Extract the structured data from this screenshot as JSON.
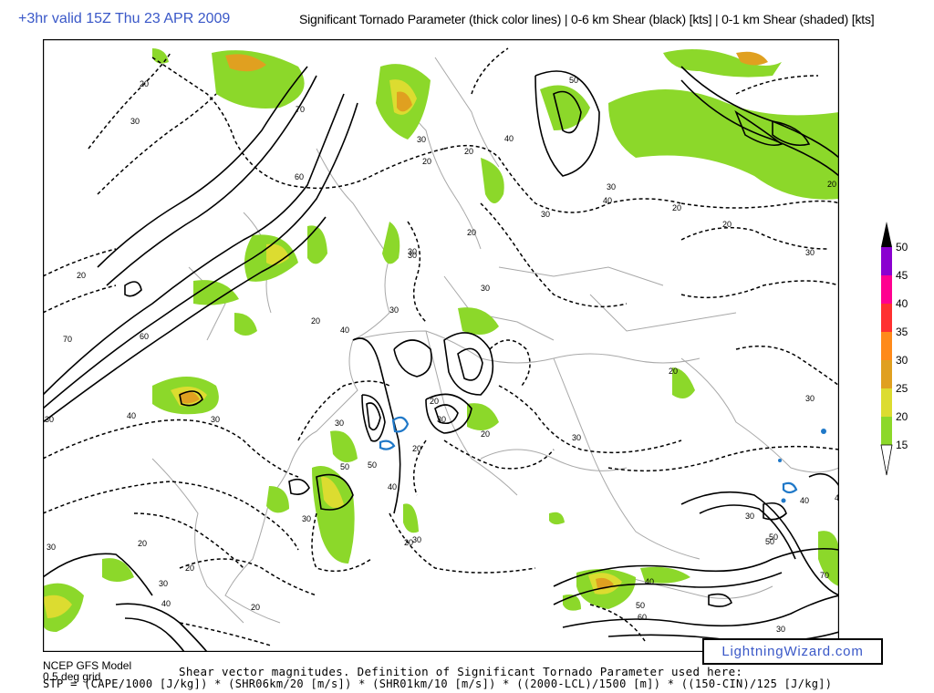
{
  "header": {
    "valid_label": "+3hr valid 15Z Thu 23 APR 2009",
    "product_title": "Significant Tornado Parameter (thick color lines) | 0-6 km Shear (black) [kts] | 0-1 km Shear (shaded) [kts]"
  },
  "colorbar": {
    "ticks": [
      "50",
      "45",
      "40",
      "35",
      "30",
      "25",
      "20",
      "15"
    ],
    "colors": [
      "#000000",
      "#8a00d0",
      "#ff0090",
      "#ff3030",
      "#ff8a1a",
      "#e0a020",
      "#dcdc30",
      "#8cd82a"
    ]
  },
  "contour_labels": [
    "20",
    "30",
    "70",
    "60",
    "20",
    "70",
    "60",
    "30",
    "40",
    "30",
    "50",
    "40",
    "30",
    "20",
    "20",
    "30",
    "40",
    "50",
    "30",
    "20",
    "20",
    "20",
    "30",
    "30",
    "20",
    "40",
    "50",
    "30",
    "20",
    "20",
    "20",
    "40",
    "30",
    "30",
    "20",
    "30",
    "30",
    "20",
    "40",
    "50",
    "60",
    "70",
    "30",
    "50",
    "40",
    "20",
    "30",
    "20",
    "20",
    "30",
    "30",
    "20",
    "40",
    "30",
    "50",
    "40",
    "30",
    "30",
    "30"
  ],
  "footer": {
    "model_name": "NCEP GFS Model",
    "model_grid": "0.5 deg grid",
    "note": "Shear vector magnitudes. Definition of Significant Tornado Parameter used here:",
    "formula": "STP = (CAPE/1000 [J/kg]) * (SHR06km/20 [m/s]) * (SHR01km/10 [m/s]) * ((2000-LCL)/1500 [m]) * ((150-CIN)/125 [J/kg])"
  },
  "watermark": "LightningWizard.com",
  "colors": {
    "shear_green": "#8cd82a",
    "shear_yellow": "#dcdc30",
    "shear_orange": "#e0a020",
    "stp_blue": "#1f78c8",
    "coast_gray": "#a8a8a8",
    "title_blue": "#3a58c8"
  }
}
